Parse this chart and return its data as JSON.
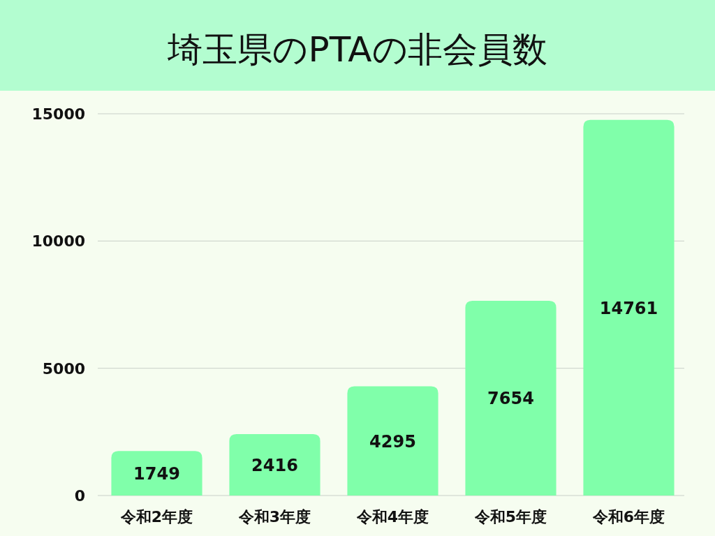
{
  "chart_data": {
    "type": "bar",
    "title": "埼玉県のPTAの非会員数",
    "categories": [
      "令和2年度",
      "令和3年度",
      "令和4年度",
      "令和5年度",
      "令和6年度"
    ],
    "values": [
      1749,
      2416,
      4295,
      7654,
      14761
    ],
    "color": "#80ffaa",
    "ylim": [
      0,
      15000
    ],
    "yticks": [
      0,
      5000,
      10000,
      15000
    ],
    "grid": "y",
    "data_labels": true
  }
}
